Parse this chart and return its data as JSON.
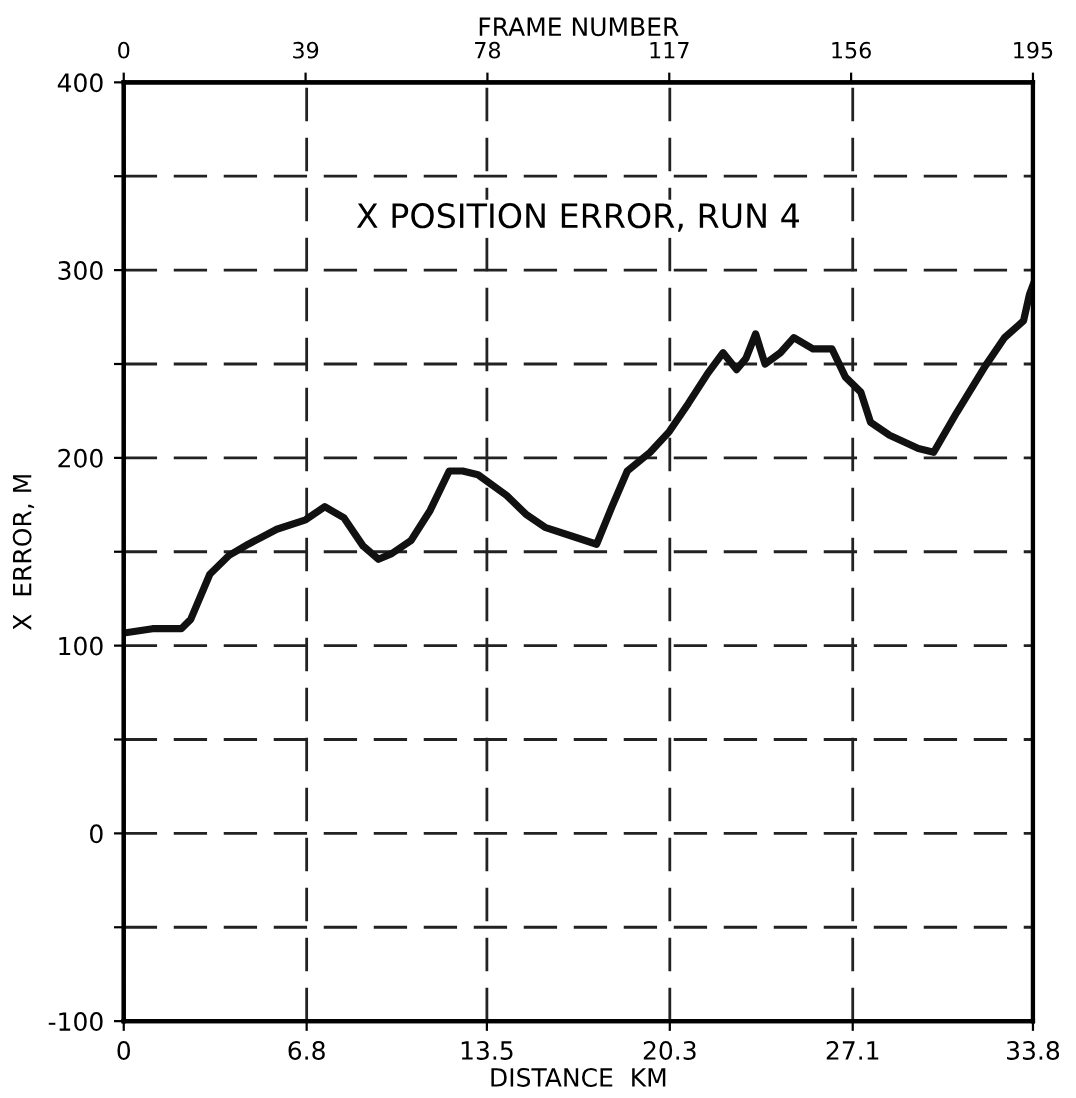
{
  "chart_data": {
    "type": "line",
    "title": "X POSITION ERROR, RUN 4",
    "xlabel": "DISTANCE  KM",
    "ylabel": "X  ERROR, M",
    "x2label": "FRAME NUMBER",
    "xlim": [
      0,
      33.8
    ],
    "xticks": [
      0,
      6.8,
      13.5,
      20.3,
      27.1,
      33.8
    ],
    "x2lim": [
      0,
      195
    ],
    "x2ticks": [
      0,
      39,
      78,
      117,
      156,
      195
    ],
    "ylim": [
      -100,
      400
    ],
    "yticks": [
      -100,
      {
        "value": -50,
        "label": null
      },
      0,
      {
        "value": 50,
        "label": null
      },
      100,
      {
        "value": 150,
        "label": null
      },
      200,
      {
        "value": 250,
        "label": null
      },
      300,
      {
        "value": 350,
        "label": null
      },
      400
    ],
    "grid": true,
    "line_style": "solid",
    "marker": "none",
    "series": [
      {
        "color": "#111111",
        "x": [
          0.14,
          1.07,
          2.14,
          2.49,
          3.2,
          3.91,
          4.63,
          5.69,
          6.76,
          7.47,
          8.19,
          8.9,
          9.47,
          9.96,
          10.68,
          11.39,
          12.1,
          12.6,
          13.17,
          14.23,
          14.95,
          15.66,
          16.73,
          17.58,
          18.15,
          18.72,
          19.57,
          20.28,
          20.99,
          21.71,
          22.28,
          22.78,
          23.13,
          23.49,
          23.84,
          24.41,
          24.91,
          25.62,
          26.33,
          26.83,
          27.4,
          27.76,
          28.47,
          29.54,
          30.11,
          30.96,
          32.03,
          32.74,
          33.45,
          33.67,
          33.8
        ],
        "values": [
          107,
          109,
          109,
          114,
          138,
          148,
          154,
          162,
          167,
          174,
          168,
          153,
          146,
          149,
          156,
          172,
          193,
          193,
          191,
          180,
          170,
          163,
          158,
          154,
          174,
          193,
          203,
          214,
          229,
          245,
          256,
          247,
          253,
          266,
          250,
          256,
          264,
          258,
          258,
          243,
          235,
          219,
          212,
          205,
          203,
          224,
          249,
          264,
          273,
          287,
          292
        ]
      }
    ]
  }
}
